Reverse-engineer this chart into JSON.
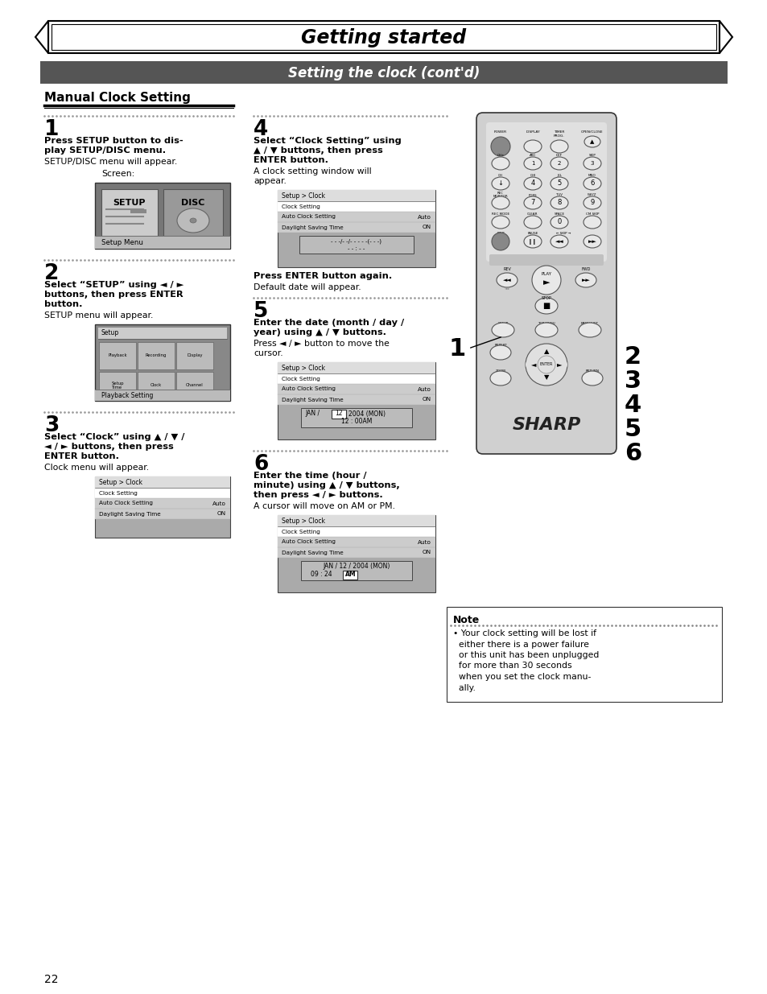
{
  "page_title": "Getting started",
  "section_title": "Setting the clock (cont'd)",
  "subsection_title": "Manual Clock Setting",
  "bg_color": "#ffffff",
  "header_bg": "#5a5a5a",
  "page_number": "22",
  "note_title": "Note",
  "note_text": "Your clock setting will be lost if either there is a power failure or this unit has been unplugged for more than 30 seconds when you set the clock manually."
}
